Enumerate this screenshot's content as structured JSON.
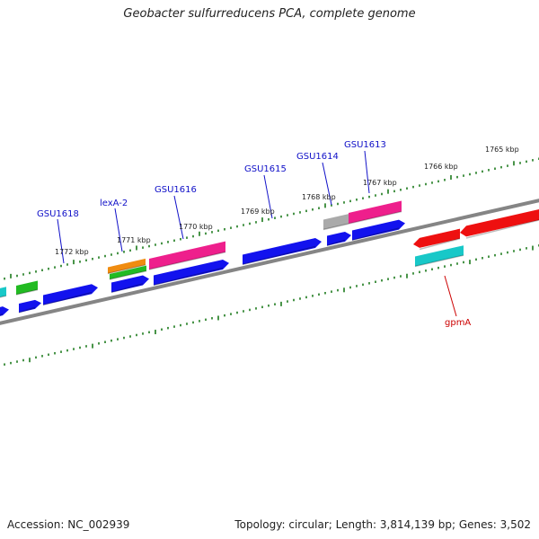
{
  "title": "Geobacter sulfurreducens PCA, complete genome",
  "footer": {
    "accession_label": "Accession: NC_002939",
    "topology_label": "Topology: circular; Length: 3,814,139 bp; Genes: 3,502"
  },
  "colors": {
    "backbone": "#858585",
    "tick": "#1b7a1b",
    "label_blue": "#1010c8",
    "label_red": "#cc0000",
    "blue": "#1212ee",
    "pink": "#ee1f8c",
    "green": "#22bb22",
    "cyan": "#18c8c8",
    "orange": "#f08c10",
    "red": "#ee1010",
    "gray": "#aaaaaa"
  },
  "scale_labels": [
    "1772 kbp",
    "1771 kbp",
    "1770 kbp",
    "1769 kbp",
    "1768 kbp",
    "1767 kbp",
    "1766 kbp",
    "1765 kbp"
  ],
  "gene_labels": [
    {
      "text": "GSU1618",
      "color": "blue"
    },
    {
      "text": "lexA-2",
      "color": "blue"
    },
    {
      "text": "GSU1616",
      "color": "blue"
    },
    {
      "text": "GSU1615",
      "color": "blue"
    },
    {
      "text": "GSU1614",
      "color": "blue"
    },
    {
      "text": "GSU1613",
      "color": "blue"
    },
    {
      "text": "gpmA",
      "color": "red"
    }
  ]
}
